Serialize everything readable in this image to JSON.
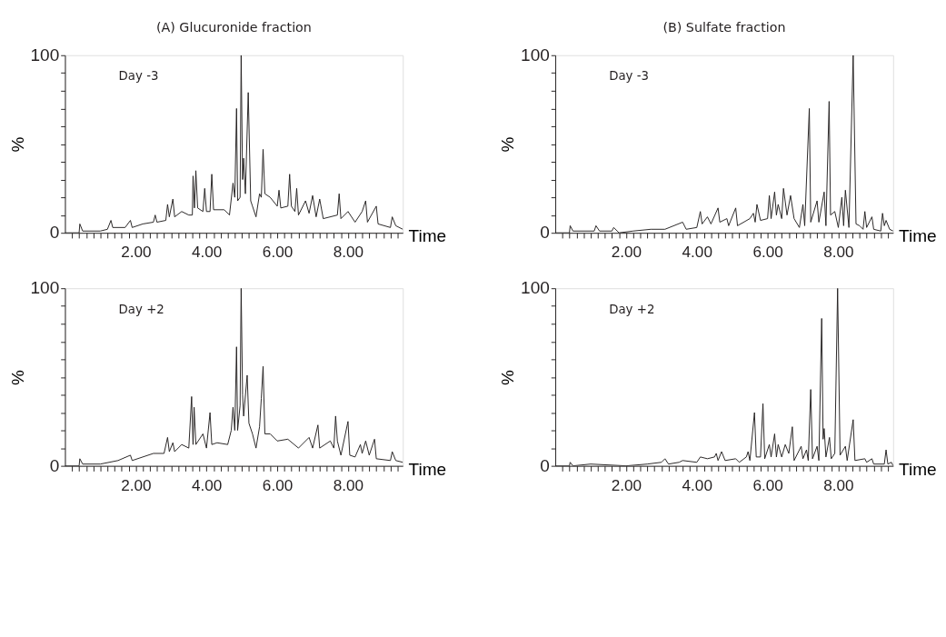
{
  "chart_data": [
    {
      "type": "line",
      "title": "(A) Glucuronide fraction",
      "xlabel": "Time",
      "ylabel": "%",
      "annotations": [
        "Day -3"
      ],
      "grid": false,
      "line_style": "solid",
      "marker": "none",
      "xlim": [
        0,
        9.55
      ],
      "ylim": [
        0,
        100
      ],
      "xticks": [
        {
          "value": 0.2,
          "label": null
        },
        {
          "value": 0.4,
          "label": null
        },
        {
          "value": 0.6,
          "label": null
        },
        {
          "value": 0.8,
          "label": null
        },
        {
          "value": 1,
          "label": null
        },
        {
          "value": 1.2,
          "label": null
        },
        {
          "value": 1.4,
          "label": null
        },
        {
          "value": 1.6,
          "label": null
        },
        {
          "value": 1.8,
          "label": null
        },
        {
          "value": 2,
          "label": "2.00"
        },
        {
          "value": 2.2,
          "label": null
        },
        {
          "value": 2.4,
          "label": null
        },
        {
          "value": 2.6,
          "label": null
        },
        {
          "value": 2.8,
          "label": null
        },
        {
          "value": 3,
          "label": null
        },
        {
          "value": 3.2,
          "label": null
        },
        {
          "value": 3.4,
          "label": null
        },
        {
          "value": 3.6,
          "label": null
        },
        {
          "value": 3.8,
          "label": null
        },
        {
          "value": 4,
          "label": "4.00"
        },
        {
          "value": 4.2,
          "label": null
        },
        {
          "value": 4.4,
          "label": null
        },
        {
          "value": 4.6,
          "label": null
        },
        {
          "value": 4.8,
          "label": null
        },
        {
          "value": 5,
          "label": null
        },
        {
          "value": 5.2,
          "label": null
        },
        {
          "value": 5.4,
          "label": null
        },
        {
          "value": 5.6,
          "label": null
        },
        {
          "value": 5.8,
          "label": null
        },
        {
          "value": 6,
          "label": "6.00"
        },
        {
          "value": 6.2,
          "label": null
        },
        {
          "value": 6.4,
          "label": null
        },
        {
          "value": 6.6,
          "label": null
        },
        {
          "value": 6.8,
          "label": null
        },
        {
          "value": 7,
          "label": null
        },
        {
          "value": 7.2,
          "label": null
        },
        {
          "value": 7.4,
          "label": null
        },
        {
          "value": 7.6,
          "label": null
        },
        {
          "value": 7.8,
          "label": null
        },
        {
          "value": 8,
          "label": "8.00"
        },
        {
          "value": 8.2,
          "label": null
        },
        {
          "value": 8.4,
          "label": null
        },
        {
          "value": 8.6,
          "label": null
        },
        {
          "value": 8.8,
          "label": null
        },
        {
          "value": 9,
          "label": null
        },
        {
          "value": 9.2,
          "label": null
        },
        {
          "value": 9.4,
          "label": null
        }
      ],
      "yticks": [
        0,
        {
          "value": 10,
          "label": null
        },
        {
          "value": 20,
          "label": null
        },
        {
          "value": 30,
          "label": null
        },
        {
          "value": 40,
          "label": null
        },
        {
          "value": 50,
          "label": null
        },
        {
          "value": 60,
          "label": null
        },
        {
          "value": 70,
          "label": null
        },
        {
          "value": 80,
          "label": null
        },
        {
          "value": 90,
          "label": null
        },
        100
      ],
      "x": [
        0,
        0.4,
        0.42,
        0.5,
        1.0,
        1.2,
        1.3,
        1.35,
        1.7,
        1.85,
        1.9,
        2.2,
        2.5,
        2.55,
        2.6,
        2.85,
        2.9,
        2.95,
        3.05,
        3.1,
        3.3,
        3.5,
        3.6,
        3.62,
        3.66,
        3.7,
        3.75,
        3.9,
        3.95,
        4.0,
        4.1,
        4.15,
        4.2,
        4.5,
        4.65,
        4.75,
        4.8,
        4.85,
        4.88,
        4.95,
        4.98,
        5.02,
        5.05,
        5.1,
        5.18,
        5.25,
        5.3,
        5.4,
        5.5,
        5.55,
        5.6,
        5.65,
        5.8,
        6.0,
        6.05,
        6.1,
        6.3,
        6.35,
        6.4,
        6.5,
        6.55,
        6.6,
        6.8,
        6.9,
        7.0,
        7.1,
        7.2,
        7.3,
        7.7,
        7.75,
        7.8,
        8.0,
        8.2,
        8.4,
        8.5,
        8.55,
        8.8,
        8.85,
        9.2,
        9.25,
        9.35,
        9.55
      ],
      "series": [
        {
          "color": "#231f20",
          "values": [
            0,
            0,
            5,
            1,
            1,
            2,
            7,
            3,
            3,
            7,
            3,
            5,
            6,
            10,
            6,
            7,
            16,
            9,
            19,
            9,
            12,
            10,
            10,
            32,
            14,
            35,
            14,
            12,
            25,
            12,
            12,
            33,
            13,
            13,
            10,
            28,
            20,
            70,
            18,
            20,
            100,
            30,
            42,
            22,
            79,
            18,
            15,
            9,
            22,
            20,
            47,
            22,
            20,
            15,
            24,
            14,
            15,
            33,
            15,
            12,
            25,
            10,
            18,
            11,
            21,
            9,
            19,
            8,
            10,
            22,
            8,
            12,
            6,
            12,
            18,
            6,
            15,
            5,
            3,
            9,
            4,
            2
          ]
        }
      ]
    },
    {
      "type": "line",
      "title": "(B) Sulfate fraction",
      "xlabel": "Time",
      "ylabel": "%",
      "annotations": [
        "Day -3"
      ],
      "grid": false,
      "line_style": "solid",
      "marker": "none",
      "xlim": [
        0,
        9.55
      ],
      "ylim": [
        0,
        100
      ],
      "xticks": [
        {
          "value": 0.2,
          "label": null
        },
        {
          "value": 0.4,
          "label": null
        },
        {
          "value": 0.6,
          "label": null
        },
        {
          "value": 0.8,
          "label": null
        },
        {
          "value": 1,
          "label": null
        },
        {
          "value": 1.2,
          "label": null
        },
        {
          "value": 1.4,
          "label": null
        },
        {
          "value": 1.6,
          "label": null
        },
        {
          "value": 1.8,
          "label": null
        },
        {
          "value": 2,
          "label": "2.00"
        },
        {
          "value": 2.2,
          "label": null
        },
        {
          "value": 2.4,
          "label": null
        },
        {
          "value": 2.6,
          "label": null
        },
        {
          "value": 2.8,
          "label": null
        },
        {
          "value": 3,
          "label": null
        },
        {
          "value": 3.2,
          "label": null
        },
        {
          "value": 3.4,
          "label": null
        },
        {
          "value": 3.6,
          "label": null
        },
        {
          "value": 3.8,
          "label": null
        },
        {
          "value": 4,
          "label": "4.00"
        },
        {
          "value": 4.2,
          "label": null
        },
        {
          "value": 4.4,
          "label": null
        },
        {
          "value": 4.6,
          "label": null
        },
        {
          "value": 4.8,
          "label": null
        },
        {
          "value": 5,
          "label": null
        },
        {
          "value": 5.2,
          "label": null
        },
        {
          "value": 5.4,
          "label": null
        },
        {
          "value": 5.6,
          "label": null
        },
        {
          "value": 5.8,
          "label": null
        },
        {
          "value": 6,
          "label": "6.00"
        },
        {
          "value": 6.2,
          "label": null
        },
        {
          "value": 6.4,
          "label": null
        },
        {
          "value": 6.6,
          "label": null
        },
        {
          "value": 6.8,
          "label": null
        },
        {
          "value": 7,
          "label": null
        },
        {
          "value": 7.2,
          "label": null
        },
        {
          "value": 7.4,
          "label": null
        },
        {
          "value": 7.6,
          "label": null
        },
        {
          "value": 7.8,
          "label": null
        },
        {
          "value": 8,
          "label": "8.00"
        },
        {
          "value": 8.2,
          "label": null
        },
        {
          "value": 8.4,
          "label": null
        },
        {
          "value": 8.6,
          "label": null
        },
        {
          "value": 8.8,
          "label": null
        },
        {
          "value": 9,
          "label": null
        },
        {
          "value": 9.2,
          "label": null
        },
        {
          "value": 9.4,
          "label": null
        }
      ],
      "yticks": [
        0,
        {
          "value": 10,
          "label": null
        },
        {
          "value": 20,
          "label": null
        },
        {
          "value": 30,
          "label": null
        },
        {
          "value": 40,
          "label": null
        },
        {
          "value": 50,
          "label": null
        },
        {
          "value": 60,
          "label": null
        },
        {
          "value": 70,
          "label": null
        },
        {
          "value": 80,
          "label": null
        },
        {
          "value": 90,
          "label": null
        },
        100
      ],
      "x": [
        0,
        0.4,
        0.42,
        0.5,
        1.1,
        1.15,
        1.25,
        1.6,
        1.65,
        1.8,
        2.2,
        2.7,
        3.1,
        3.6,
        3.7,
        4.0,
        4.1,
        4.15,
        4.3,
        4.4,
        4.6,
        4.65,
        4.85,
        4.9,
        5.1,
        5.15,
        5.5,
        5.6,
        5.65,
        5.7,
        5.8,
        6.0,
        6.05,
        6.1,
        6.2,
        6.25,
        6.3,
        6.4,
        6.45,
        6.55,
        6.65,
        6.75,
        6.9,
        7.0,
        7.05,
        7.18,
        7.22,
        7.4,
        7.45,
        7.6,
        7.65,
        7.74,
        7.78,
        7.9,
        8.0,
        8.1,
        8.15,
        8.2,
        8.3,
        8.42,
        8.5,
        8.6,
        8.7,
        8.75,
        8.8,
        8.95,
        9.0,
        9.2,
        9.25,
        9.3,
        9.35,
        9.45,
        9.55
      ],
      "series": [
        {
          "color": "#231f20",
          "values": [
            0,
            0,
            4,
            1,
            1,
            4,
            1,
            1,
            3,
            0,
            1,
            2,
            2,
            6,
            2,
            3,
            12,
            5,
            9,
            5,
            14,
            6,
            8,
            4,
            14,
            4,
            8,
            11,
            6,
            16,
            7,
            8,
            21,
            8,
            23,
            10,
            16,
            8,
            25,
            10,
            21,
            8,
            3,
            16,
            4,
            70,
            6,
            18,
            6,
            23,
            4,
            74,
            10,
            12,
            3,
            20,
            4,
            24,
            3,
            100,
            5,
            4,
            2,
            12,
            3,
            9,
            2,
            1,
            11,
            4,
            7,
            2,
            1
          ]
        }
      ]
    },
    {
      "type": "line",
      "xlabel": "Time",
      "ylabel": "%",
      "annotations": [
        "Day +2"
      ],
      "grid": false,
      "line_style": "solid",
      "marker": "none",
      "xlim": [
        0,
        9.55
      ],
      "ylim": [
        0,
        100
      ],
      "xticks": [
        {
          "value": 0.2,
          "label": null
        },
        {
          "value": 0.4,
          "label": null
        },
        {
          "value": 0.6,
          "label": null
        },
        {
          "value": 0.8,
          "label": null
        },
        {
          "value": 1,
          "label": null
        },
        {
          "value": 1.2,
          "label": null
        },
        {
          "value": 1.4,
          "label": null
        },
        {
          "value": 1.6,
          "label": null
        },
        {
          "value": 1.8,
          "label": null
        },
        {
          "value": 2,
          "label": "2.00"
        },
        {
          "value": 2.2,
          "label": null
        },
        {
          "value": 2.4,
          "label": null
        },
        {
          "value": 2.6,
          "label": null
        },
        {
          "value": 2.8,
          "label": null
        },
        {
          "value": 3,
          "label": null
        },
        {
          "value": 3.2,
          "label": null
        },
        {
          "value": 3.4,
          "label": null
        },
        {
          "value": 3.6,
          "label": null
        },
        {
          "value": 3.8,
          "label": null
        },
        {
          "value": 4,
          "label": "4.00"
        },
        {
          "value": 4.2,
          "label": null
        },
        {
          "value": 4.4,
          "label": null
        },
        {
          "value": 4.6,
          "label": null
        },
        {
          "value": 4.8,
          "label": null
        },
        {
          "value": 5,
          "label": null
        },
        {
          "value": 5.2,
          "label": null
        },
        {
          "value": 5.4,
          "label": null
        },
        {
          "value": 5.6,
          "label": null
        },
        {
          "value": 5.8,
          "label": null
        },
        {
          "value": 6,
          "label": "6.00"
        },
        {
          "value": 6.2,
          "label": null
        },
        {
          "value": 6.4,
          "label": null
        },
        {
          "value": 6.6,
          "label": null
        },
        {
          "value": 6.8,
          "label": null
        },
        {
          "value": 7,
          "label": null
        },
        {
          "value": 7.2,
          "label": null
        },
        {
          "value": 7.4,
          "label": null
        },
        {
          "value": 7.6,
          "label": null
        },
        {
          "value": 7.8,
          "label": null
        },
        {
          "value": 8,
          "label": "8.00"
        },
        {
          "value": 8.2,
          "label": null
        },
        {
          "value": 8.4,
          "label": null
        },
        {
          "value": 8.6,
          "label": null
        },
        {
          "value": 8.8,
          "label": null
        },
        {
          "value": 9,
          "label": null
        },
        {
          "value": 9.2,
          "label": null
        },
        {
          "value": 9.4,
          "label": null
        }
      ],
      "yticks": [
        0,
        {
          "value": 10,
          "label": null
        },
        {
          "value": 20,
          "label": null
        },
        {
          "value": 30,
          "label": null
        },
        {
          "value": 40,
          "label": null
        },
        {
          "value": 50,
          "label": null
        },
        {
          "value": 60,
          "label": null
        },
        {
          "value": 70,
          "label": null
        },
        {
          "value": 80,
          "label": null
        },
        {
          "value": 90,
          "label": null
        },
        100
      ],
      "x": [
        0,
        0.4,
        0.42,
        0.5,
        1.0,
        1.5,
        1.85,
        1.9,
        2.5,
        2.8,
        2.9,
        2.95,
        3.05,
        3.1,
        3.3,
        3.5,
        3.58,
        3.62,
        3.65,
        3.7,
        3.9,
        4.0,
        4.1,
        4.15,
        4.3,
        4.6,
        4.7,
        4.75,
        4.8,
        4.85,
        4.88,
        4.95,
        4.98,
        5.02,
        5.05,
        5.15,
        5.2,
        5.3,
        5.4,
        5.5,
        5.55,
        5.6,
        5.65,
        5.8,
        6.0,
        6.3,
        6.6,
        6.9,
        7.0,
        7.15,
        7.2,
        7.5,
        7.6,
        7.65,
        7.7,
        7.8,
        8.0,
        8.05,
        8.2,
        8.35,
        8.4,
        8.5,
        8.6,
        8.75,
        8.8,
        9.2,
        9.25,
        9.35,
        9.55
      ],
      "series": [
        {
          "color": "#231f20",
          "values": [
            0,
            0,
            4,
            1,
            1,
            3,
            6,
            3,
            7,
            7,
            16,
            8,
            13,
            8,
            12,
            10,
            39,
            12,
            33,
            12,
            18,
            10,
            30,
            12,
            13,
            12,
            20,
            33,
            20,
            67,
            20,
            34,
            100,
            40,
            28,
            51,
            24,
            18,
            10,
            22,
            38,
            56,
            18,
            18,
            14,
            15,
            10,
            16,
            10,
            23,
            10,
            14,
            10,
            28,
            14,
            6,
            25,
            6,
            5,
            12,
            7,
            14,
            6,
            15,
            4,
            3,
            8,
            3,
            2
          ]
        }
      ]
    },
    {
      "type": "line",
      "xlabel": "Time",
      "ylabel": "%",
      "annotations": [
        "Day +2"
      ],
      "grid": false,
      "line_style": "solid",
      "marker": "none",
      "xlim": [
        0,
        9.55
      ],
      "ylim": [
        0,
        100
      ],
      "xticks": [
        {
          "value": 0.2,
          "label": null
        },
        {
          "value": 0.4,
          "label": null
        },
        {
          "value": 0.6,
          "label": null
        },
        {
          "value": 0.8,
          "label": null
        },
        {
          "value": 1,
          "label": null
        },
        {
          "value": 1.2,
          "label": null
        },
        {
          "value": 1.4,
          "label": null
        },
        {
          "value": 1.6,
          "label": null
        },
        {
          "value": 1.8,
          "label": null
        },
        {
          "value": 2,
          "label": "2.00"
        },
        {
          "value": 2.2,
          "label": null
        },
        {
          "value": 2.4,
          "label": null
        },
        {
          "value": 2.6,
          "label": null
        },
        {
          "value": 2.8,
          "label": null
        },
        {
          "value": 3,
          "label": null
        },
        {
          "value": 3.2,
          "label": null
        },
        {
          "value": 3.4,
          "label": null
        },
        {
          "value": 3.6,
          "label": null
        },
        {
          "value": 3.8,
          "label": null
        },
        {
          "value": 4,
          "label": "4.00"
        },
        {
          "value": 4.2,
          "label": null
        },
        {
          "value": 4.4,
          "label": null
        },
        {
          "value": 4.6,
          "label": null
        },
        {
          "value": 4.8,
          "label": null
        },
        {
          "value": 5,
          "label": null
        },
        {
          "value": 5.2,
          "label": null
        },
        {
          "value": 5.4,
          "label": null
        },
        {
          "value": 5.6,
          "label": null
        },
        {
          "value": 5.8,
          "label": null
        },
        {
          "value": 6,
          "label": "6.00"
        },
        {
          "value": 6.2,
          "label": null
        },
        {
          "value": 6.4,
          "label": null
        },
        {
          "value": 6.6,
          "label": null
        },
        {
          "value": 6.8,
          "label": null
        },
        {
          "value": 7,
          "label": null
        },
        {
          "value": 7.2,
          "label": null
        },
        {
          "value": 7.4,
          "label": null
        },
        {
          "value": 7.6,
          "label": null
        },
        {
          "value": 7.8,
          "label": null
        },
        {
          "value": 8,
          "label": "8.00"
        },
        {
          "value": 8.2,
          "label": null
        },
        {
          "value": 8.4,
          "label": null
        },
        {
          "value": 8.6,
          "label": null
        },
        {
          "value": 8.8,
          "label": null
        },
        {
          "value": 9,
          "label": null
        },
        {
          "value": 9.2,
          "label": null
        },
        {
          "value": 9.4,
          "label": null
        }
      ],
      "yticks": [
        0,
        {
          "value": 10,
          "label": null
        },
        {
          "value": 20,
          "label": null
        },
        {
          "value": 30,
          "label": null
        },
        {
          "value": 40,
          "label": null
        },
        {
          "value": 50,
          "label": null
        },
        {
          "value": 60,
          "label": null
        },
        {
          "value": 70,
          "label": null
        },
        {
          "value": 80,
          "label": null
        },
        {
          "value": 90,
          "label": null
        },
        100
      ],
      "x": [
        0,
        0.4,
        0.42,
        0.5,
        1.0,
        2.0,
        2.6,
        3.0,
        3.1,
        3.2,
        3.5,
        3.6,
        4.0,
        4.1,
        4.3,
        4.5,
        4.55,
        4.6,
        4.7,
        4.8,
        5.1,
        5.2,
        5.4,
        5.45,
        5.5,
        5.63,
        5.68,
        5.8,
        5.87,
        5.92,
        6.05,
        6.1,
        6.2,
        6.25,
        6.3,
        6.4,
        6.5,
        6.6,
        6.7,
        6.75,
        6.95,
        7.0,
        7.1,
        7.15,
        7.22,
        7.27,
        7.4,
        7.45,
        7.53,
        7.57,
        7.6,
        7.65,
        7.75,
        7.8,
        7.9,
        7.98,
        8.05,
        8.2,
        8.25,
        8.42,
        8.47,
        8.75,
        8.8,
        8.95,
        9.0,
        9.3,
        9.35,
        9.4,
        9.5,
        9.55
      ],
      "series": [
        {
          "color": "#231f20",
          "values": [
            0,
            0,
            2,
            0,
            1,
            0,
            1,
            2,
            4,
            1,
            2,
            3,
            2,
            5,
            4,
            5,
            7,
            3,
            8,
            3,
            4,
            2,
            5,
            8,
            3,
            30,
            5,
            5,
            35,
            4,
            12,
            5,
            18,
            5,
            12,
            5,
            12,
            7,
            22,
            3,
            11,
            4,
            9,
            3,
            43,
            4,
            11,
            3,
            83,
            15,
            21,
            5,
            16,
            4,
            7,
            100,
            6,
            11,
            3,
            26,
            3,
            4,
            2,
            4,
            1,
            1,
            9,
            1,
            2,
            0
          ]
        }
      ]
    }
  ]
}
